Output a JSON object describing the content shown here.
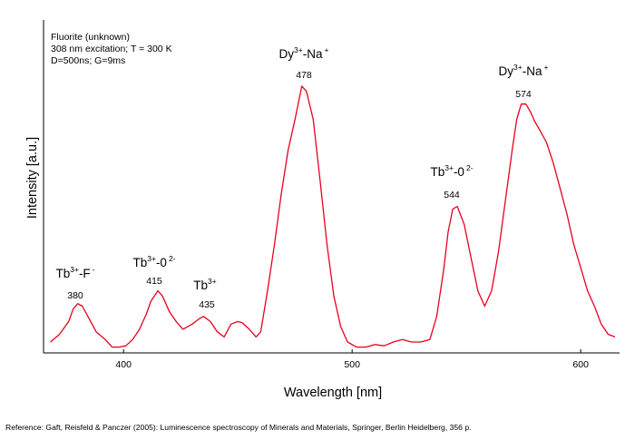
{
  "info": {
    "line1": "Fluorite (unknown)",
    "line2": "308 nm excitation; T = 300 K",
    "line3": "D=500ns; G=9ms"
  },
  "reference": "Reference: Gaft, Reisfeld & Panczer (2005): Luminescence spectroscopy of Minerals and Materials, Springer, Berlin Heidelberg, 356 p.",
  "colors": {
    "series": "#e8001c",
    "axis": "#000000"
  },
  "chart_data": {
    "type": "line",
    "title": "",
    "xlabel": "Wavelength [nm]",
    "ylabel": "Intensity [a.u.]",
    "xlim": [
      365,
      617
    ],
    "ylim": [
      0,
      1
    ],
    "xticks": [
      400,
      500,
      600
    ],
    "yticks_visible": false,
    "grid": false,
    "legend": "none",
    "series": [
      {
        "x": [
          368,
          372,
          376,
          378,
          380,
          382,
          385,
          388,
          392,
          395,
          398,
          401,
          404,
          407,
          410,
          412,
          415,
          417,
          420,
          423,
          426,
          430,
          433,
          435,
          438,
          441,
          444,
          447,
          450,
          452,
          455,
          458,
          460,
          463,
          466,
          469,
          472,
          475,
          478,
          480,
          483,
          486,
          489,
          492,
          495,
          498,
          502,
          506,
          510,
          514,
          518,
          522,
          526,
          530,
          534,
          537,
          540,
          542,
          544,
          546,
          549,
          552,
          555,
          558,
          561,
          564,
          567,
          570,
          572,
          574,
          576,
          578,
          580,
          582,
          585,
          588,
          591,
          594,
          597,
          600,
          603,
          606,
          609,
          612,
          615
        ],
        "y": [
          0.0,
          0.03,
          0.08,
          0.13,
          0.15,
          0.14,
          0.09,
          0.04,
          0.01,
          -0.02,
          -0.02,
          -0.015,
          0.01,
          0.05,
          0.11,
          0.16,
          0.2,
          0.18,
          0.12,
          0.08,
          0.05,
          0.07,
          0.09,
          0.1,
          0.08,
          0.04,
          0.02,
          0.07,
          0.08,
          0.075,
          0.05,
          0.02,
          0.04,
          0.2,
          0.38,
          0.58,
          0.75,
          0.87,
          1.0,
          0.98,
          0.87,
          0.63,
          0.38,
          0.18,
          0.06,
          0.0,
          -0.02,
          -0.02,
          -0.01,
          -0.015,
          0.0,
          0.01,
          0.0,
          0.0,
          0.01,
          0.1,
          0.28,
          0.43,
          0.52,
          0.53,
          0.46,
          0.33,
          0.2,
          0.14,
          0.2,
          0.35,
          0.55,
          0.75,
          0.87,
          0.93,
          0.93,
          0.9,
          0.86,
          0.83,
          0.78,
          0.7,
          0.6,
          0.5,
          0.38,
          0.29,
          0.2,
          0.14,
          0.07,
          0.03,
          0.02
        ]
      }
    ],
    "annotations": [
      {
        "ion": "Tb",
        "charge": "3+",
        "ligand": "-F",
        "ligand_charge": "-",
        "value": "380"
      },
      {
        "ion": "Tb",
        "charge": "3+",
        "ligand": "-0",
        "ligand_charge": "2-",
        "value": "415"
      },
      {
        "ion": "Tb",
        "charge": "3+",
        "ligand": "",
        "ligand_charge": "",
        "value": "435"
      },
      {
        "ion": "Dy",
        "charge": "3+",
        "ligand": "-Na",
        "ligand_charge": "+",
        "value": "478"
      },
      {
        "ion": "Tb",
        "charge": "3+",
        "ligand": "-0",
        "ligand_charge": "2-",
        "value": "544"
      },
      {
        "ion": "Dy",
        "charge": "3+",
        "ligand": "-Na",
        "ligand_charge": "+",
        "value": "574"
      }
    ]
  }
}
